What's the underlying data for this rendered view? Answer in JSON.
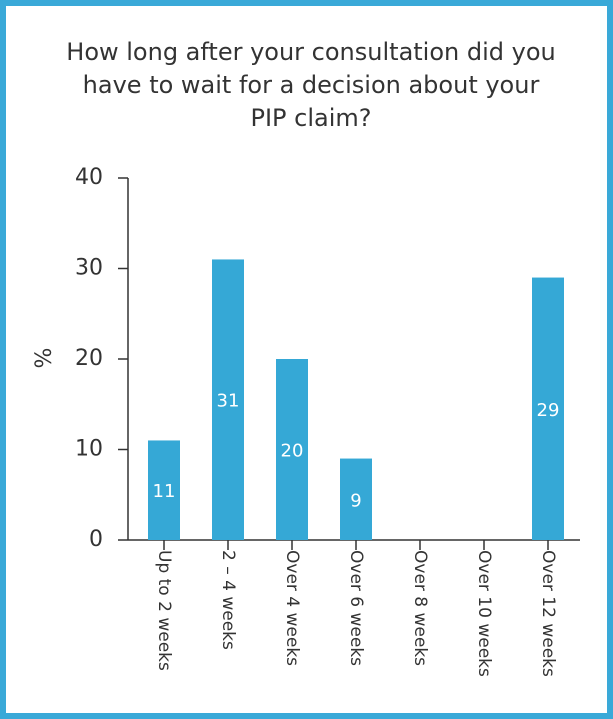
{
  "chart_data": {
    "type": "bar",
    "title": "How long after your consultation did you have to wait for a decision about your PIP claim?",
    "y_label": "%",
    "categories": [
      "Up to 2 weeks",
      "2 – 4 weeks",
      "Over 4 weeks",
      "Over 6 weeks",
      "Over 8 weeks",
      "Over 10 weeks",
      "Over 12 weeks"
    ],
    "values": [
      11,
      31,
      20,
      9,
      null,
      null,
      29
    ],
    "color": "#35a8d6",
    "ylim": [
      0,
      40
    ],
    "yticks": [
      0,
      10,
      20,
      30,
      40
    ],
    "grid": false
  }
}
